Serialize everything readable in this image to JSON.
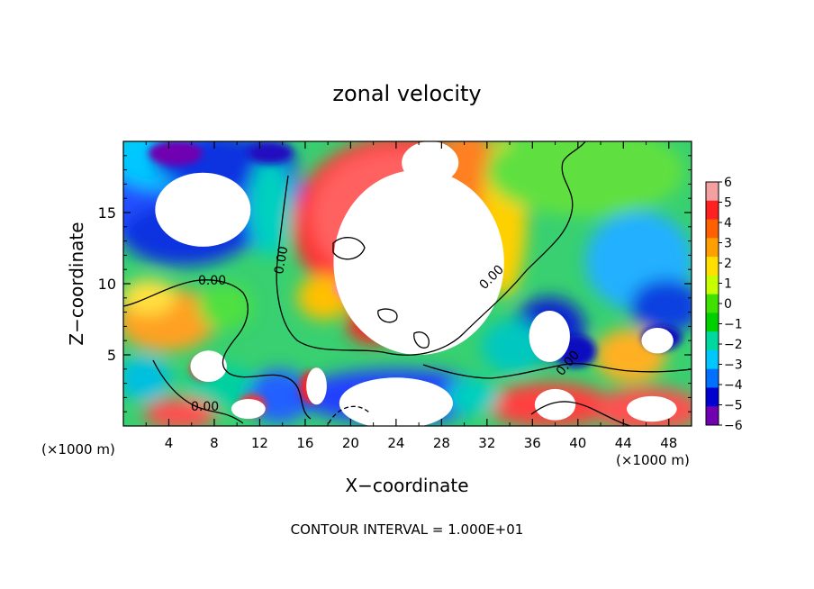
{
  "chart_data": {
    "type": "heatmap",
    "title": "zonal velocity",
    "xlabel": "X−coordinate",
    "ylabel": "Z−coordinate",
    "x_unit_left": "(×1000 m)",
    "x_unit_right": "(×1000 m)",
    "footer": "CONTOUR INTERVAL = 1.000E+01",
    "xlim": [
      0,
      50
    ],
    "ylim": [
      0,
      20
    ],
    "x_ticks": [
      4,
      8,
      12,
      16,
      20,
      24,
      28,
      32,
      36,
      40,
      44,
      48
    ],
    "x_tick_labels": [
      "4",
      "8",
      "12",
      "16",
      "20",
      "24",
      "28",
      "32",
      "36",
      "40",
      "44",
      "48"
    ],
    "y_ticks": [
      5,
      10,
      15
    ],
    "y_tick_labels": [
      "5",
      "10",
      "15"
    ],
    "contour_labels": [
      "0.00",
      "0.00",
      "0.00",
      "0.00",
      "0.00"
    ],
    "colorbar": {
      "range": [
        -6,
        6
      ],
      "tick_labels": [
        "6",
        "5",
        "4",
        "3",
        "2",
        "1",
        "0",
        "−1",
        "−2",
        "−3",
        "−4",
        "−5",
        "−6"
      ],
      "colors": [
        "#f4a0a0",
        "#ff2020",
        "#ff6000",
        "#ffa000",
        "#ffe000",
        "#c8ff00",
        "#40e000",
        "#00d000",
        "#00d8a0",
        "#00c8ff",
        "#0070ff",
        "#0000d0",
        "#7000b0"
      ]
    },
    "features": [
      {
        "kind": "clipped_high",
        "x": 26,
        "y": 11.5,
        "rx": 7.5,
        "ry": 6.5
      },
      {
        "kind": "clipped_high",
        "x": 27,
        "y": 18.5,
        "rx": 2.5,
        "ry": 1.5
      },
      {
        "kind": "clipped_low",
        "x": 7,
        "y": 15.2,
        "rx": 4.2,
        "ry": 2.6
      },
      {
        "kind": "clipped_low",
        "x": 37.5,
        "y": 6.3,
        "rx": 1.8,
        "ry": 1.8
      },
      {
        "kind": "clipped_low",
        "x": 47,
        "y": 6,
        "rx": 1.4,
        "ry": 0.9
      },
      {
        "kind": "clipped_low",
        "x": 24,
        "y": 1.6,
        "rx": 5,
        "ry": 1.8
      },
      {
        "kind": "clipped_high",
        "x": 7.5,
        "y": 4.2,
        "rx": 1.6,
        "ry": 1.1
      },
      {
        "kind": "clipped_high",
        "x": 11,
        "y": 1.2,
        "rx": 1.5,
        "ry": 0.7
      },
      {
        "kind": "clipped_high",
        "x": 38,
        "y": 1.5,
        "rx": 1.8,
        "ry": 1.1
      },
      {
        "kind": "clipped_high",
        "x": 46.5,
        "y": 1.2,
        "rx": 2.2,
        "ry": 0.9
      },
      {
        "kind": "clipped_high",
        "x": 17,
        "y": 2.8,
        "rx": 0.9,
        "ry": 1.3
      }
    ]
  }
}
